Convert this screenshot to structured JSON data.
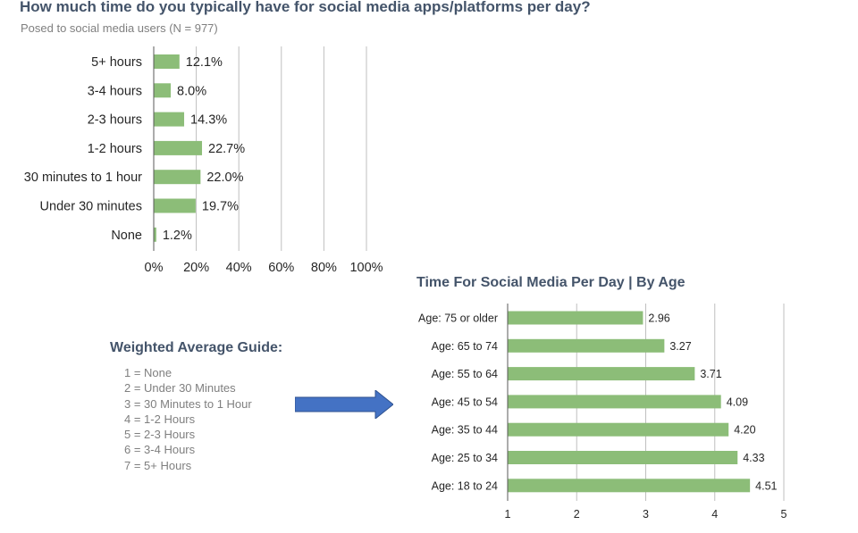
{
  "chart_data": [
    {
      "type": "bar",
      "orientation": "horizontal",
      "title": "How much time do you typically have for social media apps/platforms per day?",
      "subtitle": "Posed to social media users (N = 977)",
      "categories": [
        "5+ hours",
        "3-4 hours",
        "2-3 hours",
        "1-2 hours",
        "30 minutes to 1 hour",
        "Under 30 minutes",
        "None"
      ],
      "values": [
        12.1,
        8.0,
        14.3,
        22.7,
        22.0,
        19.7,
        1.2
      ],
      "value_labels": [
        "12.1%",
        "8.0%",
        "14.3%",
        "22.7%",
        "22.0%",
        "19.7%",
        "1.2%"
      ],
      "xlim": [
        0,
        100
      ],
      "xticks": [
        "0%",
        "20%",
        "40%",
        "60%",
        "80%",
        "100%"
      ],
      "grid": true,
      "color": "#8cbd78"
    },
    {
      "type": "bar",
      "orientation": "horizontal",
      "title": "Time For Social Media Per Day | By Age",
      "categories": [
        "Age: 75 or older",
        "Age: 65 to 74",
        "Age: 55 to 64",
        "Age: 45 to 54",
        "Age: 35 to 44",
        "Age: 25 to 34",
        "Age: 18 to 24"
      ],
      "values": [
        2.96,
        3.27,
        3.71,
        4.09,
        4.2,
        4.33,
        4.51
      ],
      "value_labels": [
        "2.96",
        "3.27",
        "3.71",
        "4.09",
        "4.20",
        "4.33",
        "4.51"
      ],
      "xlim": [
        1,
        5
      ],
      "xticks": [
        "1",
        "2",
        "3",
        "4",
        "5"
      ],
      "grid": true,
      "color": "#8cbd78"
    }
  ],
  "guide": {
    "title": "Weighted Average Guide:",
    "items": [
      "1 = None",
      "2 = Under 30 Minutes",
      "3 = 30 Minutes to 1 Hour",
      "4 = 1-2 Hours",
      "5 = 2-3 Hours",
      "6 = 3-4 Hours",
      "7 = 5+ Hours"
    ]
  },
  "arrow": {
    "icon": "right-arrow-icon",
    "color": "#4472c4"
  }
}
